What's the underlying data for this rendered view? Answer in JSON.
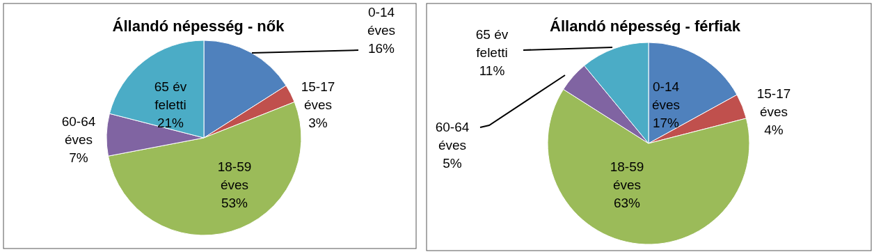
{
  "chart_data": [
    {
      "type": "pie",
      "title": "Állandó népesség - nők",
      "categories": [
        "0-14 éves",
        "15-17 éves",
        "18-59 éves",
        "60-64 éves",
        "65 év feletti"
      ],
      "values": [
        16,
        3,
        53,
        7,
        21
      ],
      "colors": [
        "#4f81bd",
        "#c0504d",
        "#9bbb59",
        "#8064a2",
        "#4bacc6"
      ],
      "value_labels": [
        "16%",
        "3%",
        "53%",
        "7%",
        "21%"
      ]
    },
    {
      "type": "pie",
      "title": "Állandó népesség - férfiak",
      "categories": [
        "0-14 éves",
        "15-17 éves",
        "18-59 éves",
        "60-64 éves",
        "65 év feletti"
      ],
      "values": [
        17,
        4,
        63,
        5,
        11
      ],
      "colors": [
        "#4f81bd",
        "#c0504d",
        "#9bbb59",
        "#8064a2",
        "#4bacc6"
      ],
      "value_labels": [
        "17%",
        "4%",
        "63%",
        "5%",
        "11%"
      ]
    }
  ]
}
